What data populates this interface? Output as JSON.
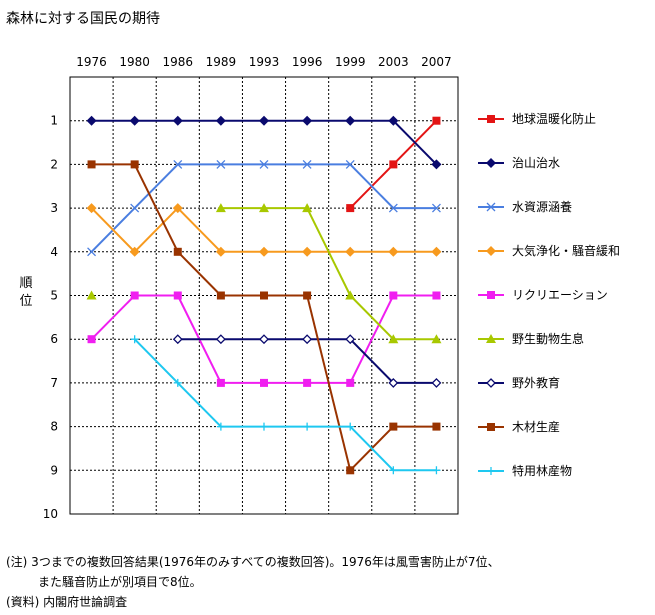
{
  "chart_data": {
    "type": "line",
    "title": "森林に対する国民の期待",
    "ylabel": "順位",
    "x": [
      "1976",
      "1980",
      "1986",
      "1989",
      "1993",
      "1996",
      "1999",
      "2003",
      "2007"
    ],
    "y_ticks": [
      "1",
      "2",
      "3",
      "4",
      "5",
      "6",
      "7",
      "8",
      "9",
      "10"
    ],
    "ylim": [
      1,
      10
    ],
    "y_inverted": true,
    "grid": true,
    "legend_position": "right",
    "series": [
      {
        "name": "地球温暖化防止",
        "color": "#e31414",
        "marker": "square",
        "values": [
          null,
          null,
          null,
          null,
          null,
          null,
          3,
          2,
          1
        ]
      },
      {
        "name": "治山治水",
        "color": "#0a0a6e",
        "marker": "diamond",
        "values": [
          1,
          1,
          1,
          1,
          1,
          1,
          1,
          1,
          2
        ]
      },
      {
        "name": "水資源涵養",
        "color": "#4a7ee0",
        "marker": "x",
        "values": [
          4,
          3,
          2,
          2,
          2,
          2,
          2,
          3,
          3
        ]
      },
      {
        "name": "大気浄化・騒音緩和",
        "color": "#f79a1e",
        "marker": "diamond",
        "values": [
          3,
          4,
          3,
          4,
          4,
          4,
          4,
          4,
          4
        ]
      },
      {
        "name": "リクリエーション",
        "color": "#f01ef0",
        "marker": "square",
        "values": [
          6,
          5,
          5,
          7,
          7,
          7,
          7,
          5,
          5
        ]
      },
      {
        "name": "野生動物生息",
        "color": "#a8c800",
        "marker": "triangle",
        "values": [
          5,
          null,
          null,
          3,
          3,
          3,
          5,
          6,
          6
        ]
      },
      {
        "name": "野外教育",
        "color": "#0a0a6e",
        "marker": "diamond-open",
        "values": [
          null,
          null,
          6,
          6,
          6,
          6,
          6,
          7,
          7
        ]
      },
      {
        "name": "木材生産",
        "color": "#993300",
        "marker": "square",
        "values": [
          2,
          2,
          4,
          5,
          5,
          5,
          9,
          8,
          8
        ]
      },
      {
        "name": "特用林産物",
        "color": "#1ec8f0",
        "marker": "plus",
        "values": [
          null,
          6,
          7,
          8,
          8,
          8,
          8,
          9,
          9
        ]
      }
    ]
  },
  "notes": {
    "line1": "(注) 3つまでの複数回答結果(1976年のみすべての複数回答)。1976年は風雪害防止が7位、",
    "line2": "また騒音防止が別項目で8位。",
    "line3": "(資料) 内閣府世論調査"
  }
}
